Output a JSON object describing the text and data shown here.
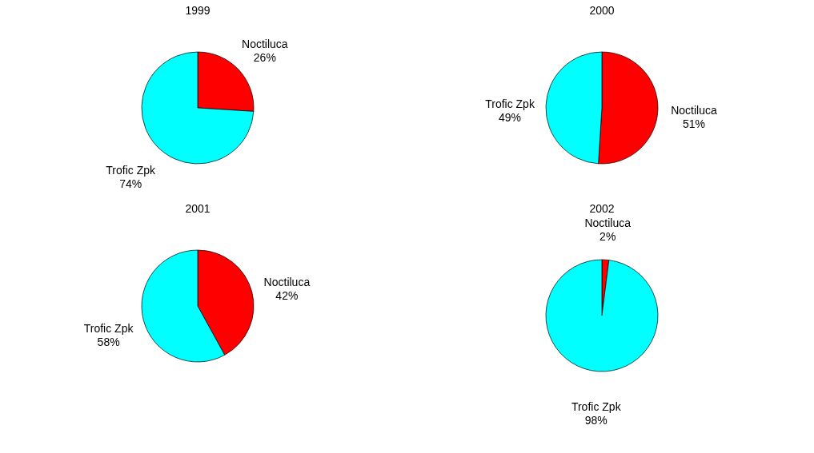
{
  "chart_data": [
    {
      "type": "pie",
      "title": "1999",
      "categories": [
        "Noctiluca",
        "Trofic Zpk"
      ],
      "values": [
        26,
        74
      ],
      "colors": [
        "#ff0000",
        "#00ffff"
      ],
      "value_labels": [
        "26%",
        "74%"
      ]
    },
    {
      "type": "pie",
      "title": "2000",
      "categories": [
        "Noctiluca",
        "Trofic Zpk"
      ],
      "values": [
        51,
        49
      ],
      "colors": [
        "#ff0000",
        "#00ffff"
      ],
      "value_labels": [
        "51%",
        "49%"
      ]
    },
    {
      "type": "pie",
      "title": "2001",
      "categories": [
        "Noctiluca",
        "Trofic Zpk"
      ],
      "values": [
        42,
        58
      ],
      "colors": [
        "#ff0000",
        "#00ffff"
      ],
      "value_labels": [
        "42%",
        "58%"
      ]
    },
    {
      "type": "pie",
      "title": "2002",
      "categories": [
        "Noctiluca",
        "Trofic Zpk"
      ],
      "values": [
        2,
        98
      ],
      "colors": [
        "#ff0000",
        "#00ffff"
      ],
      "value_labels": [
        "2%",
        "98%"
      ]
    }
  ]
}
